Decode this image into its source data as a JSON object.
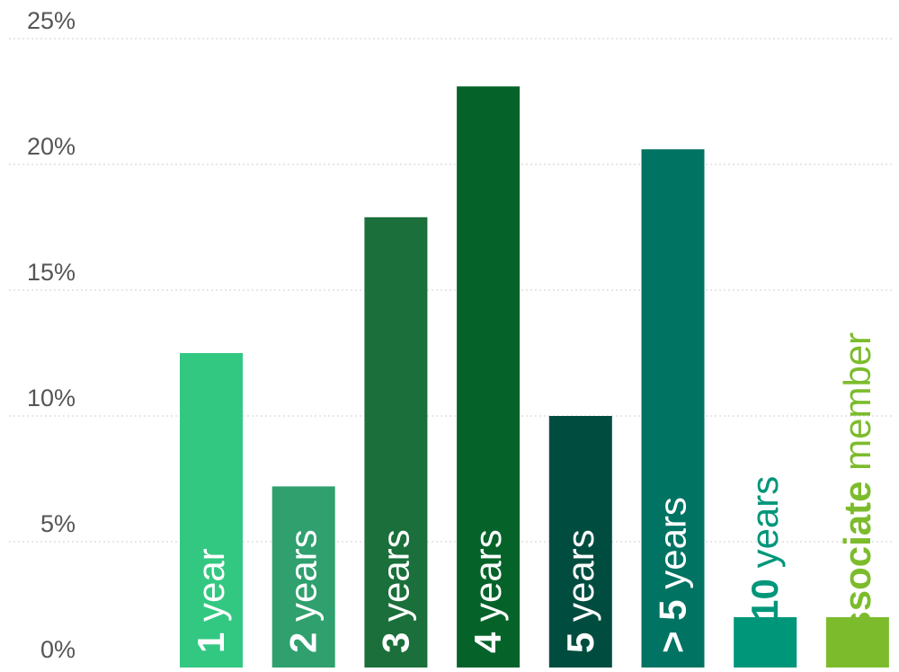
{
  "chart_data": {
    "type": "bar",
    "title": "",
    "xlabel": "",
    "ylabel": "",
    "ylim": [
      0,
      25
    ],
    "y_ticks": [
      "0%",
      "5%",
      "10%",
      "15%",
      "20%",
      "25%"
    ],
    "y_tick_values": [
      0,
      5,
      10,
      15,
      20,
      25
    ],
    "grid": "horizontal dotted",
    "legend": "none",
    "bars": [
      {
        "strong": "1",
        "rest": " year",
        "value": 12.5,
        "color": "#33c882",
        "label_color": "#ffffff"
      },
      {
        "strong": "2",
        "rest": " years",
        "value": 7.2,
        "color": "#2fa06e",
        "label_color": "#ffffff"
      },
      {
        "strong": "3",
        "rest": " years",
        "value": 17.9,
        "color": "#1a6f3a",
        "label_color": "#ffffff"
      },
      {
        "strong": "4",
        "rest": " years",
        "value": 23.1,
        "color": "#05632a",
        "label_color": "#ffffff"
      },
      {
        "strong": "5",
        "rest": " years",
        "value": 10.0,
        "color": "#004d40",
        "label_color": "#ffffff"
      },
      {
        "strong": "> 5",
        "rest": " years",
        "value": 20.6,
        "color": "#007362",
        "label_color": "#ffffff"
      },
      {
        "strong": "> 10",
        "rest": " years",
        "value": 2.0,
        "color": "#00967a",
        "label_color": "#00967a"
      },
      {
        "strong": "associate",
        "rest": " member",
        "value": 2.0,
        "color": "#7cbc2c",
        "label_color": "#7cbc2c"
      }
    ]
  }
}
